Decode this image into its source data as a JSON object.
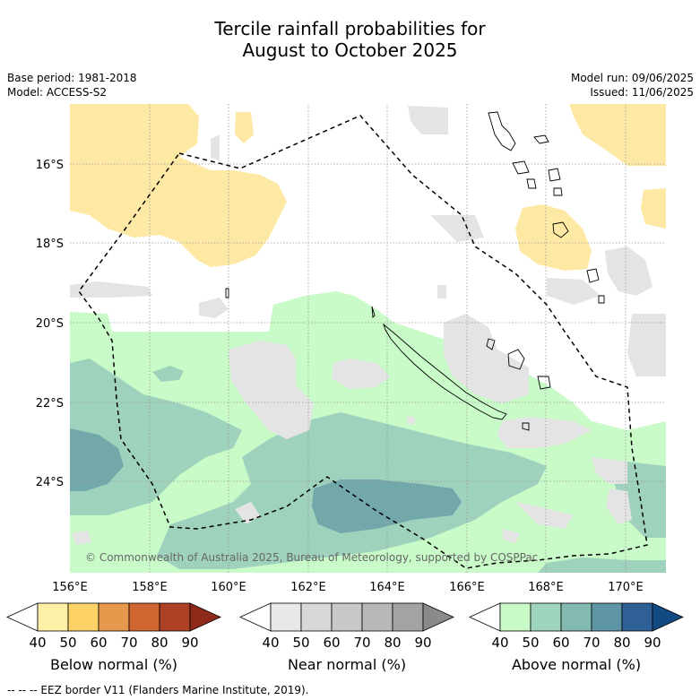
{
  "title_line1": "Tercile rainfall probabilities for",
  "title_line2": "August to October 2025",
  "base_period": "Base period: 1981-2018",
  "model": "Model: ACCESS-S2",
  "model_run": "Model run: 09/06/2025",
  "issued": "Issued: 11/06/2025",
  "latitude_labels": [
    "16°S",
    "18°S",
    "20°S",
    "22°S",
    "24°S"
  ],
  "longitude_labels": [
    "156°E",
    "158°E",
    "160°E",
    "162°E",
    "164°E",
    "166°E",
    "168°E",
    "170°E"
  ],
  "copyright": "© Commonwealth of Australia 2025, Bureau of Meteorology, supported by COSPPac",
  "colorbars": [
    {
      "label": "Below normal (%)",
      "ticks": [
        "40",
        "50",
        "60",
        "70",
        "80",
        "90"
      ],
      "colors": [
        "#ffffff",
        "#fff0a8",
        "#fdd266",
        "#e6984c",
        "#cf6530",
        "#ae4125",
        "#8f2a1a"
      ]
    },
    {
      "label": "Near normal (%)",
      "ticks": [
        "40",
        "50",
        "60",
        "70",
        "80",
        "90"
      ],
      "colors": [
        "#ffffff",
        "#e8e8e8",
        "#d8d8d8",
        "#c8c8c8",
        "#b8b8b8",
        "#a3a3a3",
        "#8a8a8a"
      ]
    },
    {
      "label": "Above normal (%)",
      "ticks": [
        "40",
        "50",
        "60",
        "70",
        "80",
        "90"
      ],
      "colors": [
        "#ffffff",
        "#c9fbc9",
        "#9fd5bd",
        "#82b9b0",
        "#5d95a4",
        "#2e6097",
        "#124a82"
      ]
    }
  ],
  "footer": "--  --  -- EEZ border V11 (Flanders Marine Institute, 2019).",
  "colors": {
    "below_50": "#fde9a3",
    "near_50": "#e4e4e4",
    "above_50": "#c9fbc9",
    "above_60": "#9fd2bd",
    "above_70": "#72a8aa"
  }
}
